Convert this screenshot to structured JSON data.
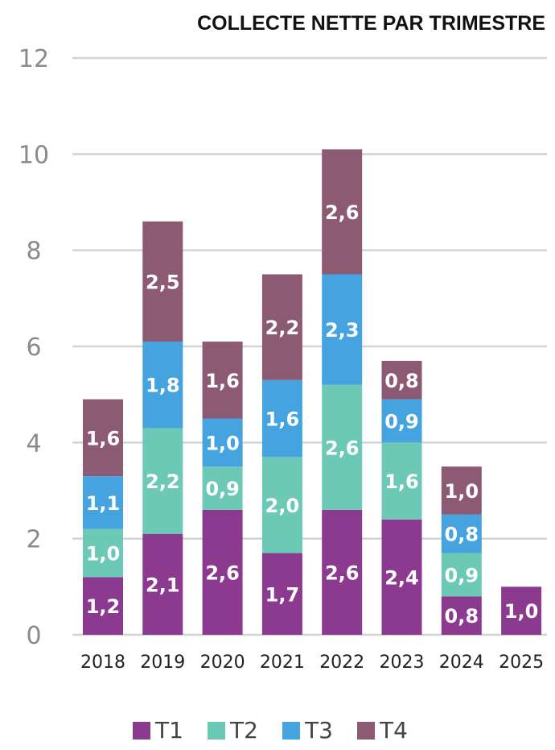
{
  "chart_data": {
    "type": "bar",
    "stacked": true,
    "title": "COLLECTE NETTE PAR TRIMESTRE",
    "xlabel": "",
    "ylabel": "",
    "categories": [
      "2018",
      "2019",
      "2020",
      "2021",
      "2022",
      "2023",
      "2024",
      "2025"
    ],
    "series": [
      {
        "name": "T1",
        "color": "#8b3a8f",
        "values": [
          1.2,
          2.1,
          2.6,
          1.7,
          2.6,
          2.4,
          0.8,
          1.0
        ],
        "labels": [
          "1,2",
          "2,1",
          "2,6",
          "1,7",
          "2,6",
          "2,4",
          "0,8",
          "1,0"
        ]
      },
      {
        "name": "T2",
        "color": "#6cc9b6",
        "values": [
          1.0,
          2.2,
          0.9,
          2.0,
          2.6,
          1.6,
          0.9,
          null
        ],
        "labels": [
          "1,0",
          "2,2",
          "0,9",
          "2,0",
          "2,6",
          "1,6",
          "0,9",
          null
        ]
      },
      {
        "name": "T3",
        "color": "#45a3e0",
        "values": [
          1.1,
          1.8,
          1.0,
          1.6,
          2.3,
          0.9,
          0.8,
          null
        ],
        "labels": [
          "1,1",
          "1,8",
          "1,0",
          "1,6",
          "2,3",
          "0,9",
          "0,8",
          null
        ]
      },
      {
        "name": "T4",
        "color": "#8d5a73",
        "values": [
          1.6,
          2.5,
          1.6,
          2.2,
          2.6,
          0.8,
          1.0,
          null
        ],
        "labels": [
          "1,6",
          "2,5",
          "1,6",
          "2,2",
          "2,6",
          "0,8",
          "1,0",
          null
        ]
      }
    ],
    "ylim": [
      0,
      12
    ],
    "yticks": [
      0,
      2,
      4,
      6,
      8,
      10,
      12
    ],
    "grid": true,
    "legend_position": "bottom-center"
  }
}
